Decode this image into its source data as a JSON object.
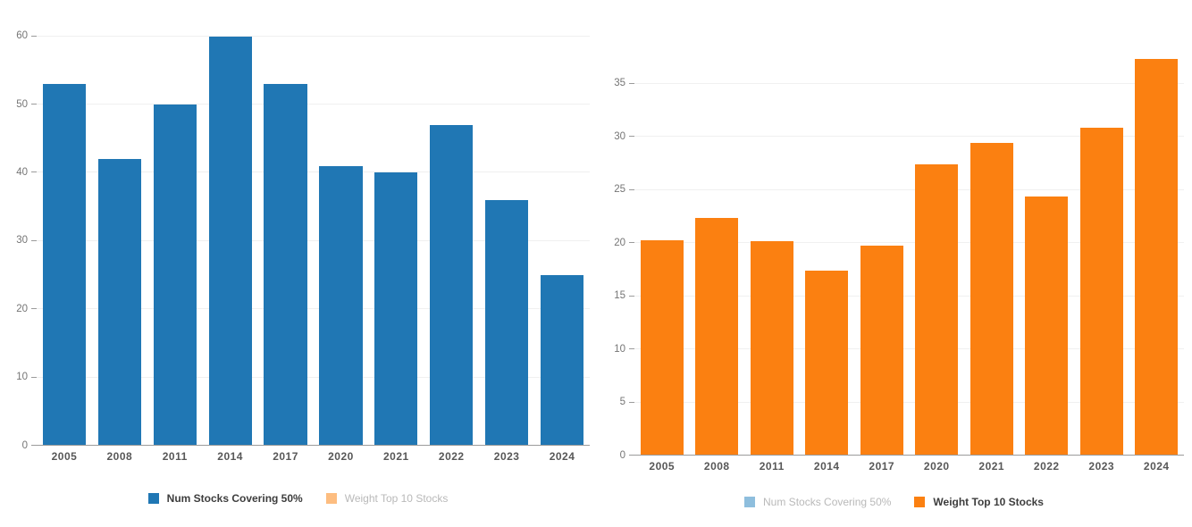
{
  "figure": {
    "background_color": "#ffffff",
    "gridline_color": "#f0f0f0",
    "axis_line_color": "#9b9b9b"
  },
  "chart_data": [
    {
      "id": "num_stocks_covering_50pct",
      "type": "bar",
      "title": "",
      "xlabel": "",
      "ylabel": "",
      "categories": [
        "2005",
        "2008",
        "2011",
        "2014",
        "2017",
        "2020",
        "2021",
        "2022",
        "2023",
        "2024"
      ],
      "values": [
        53,
        42,
        50,
        60,
        53,
        41,
        40,
        47,
        36,
        25
      ],
      "series_name": "Num Stocks Covering 50%",
      "bar_color": "#2077b4",
      "ylim": [
        0,
        61.4
      ],
      "yticks": [
        0,
        10,
        20,
        30,
        40,
        50,
        60
      ],
      "grid": true,
      "legend_position": "bottom-center",
      "legend": [
        {
          "label": "Num Stocks Covering 50%",
          "swatch_color": "#2077b4",
          "active": true
        },
        {
          "label": "Weight Top 10 Stocks",
          "swatch_color": "#fdbd80",
          "active": false
        }
      ]
    },
    {
      "id": "weight_top_10_stocks",
      "type": "bar",
      "title": "",
      "xlabel": "",
      "ylabel": "",
      "categories": [
        "2005",
        "2008",
        "2011",
        "2014",
        "2017",
        "2020",
        "2021",
        "2022",
        "2023",
        "2024"
      ],
      "values": [
        20.3,
        22.4,
        20.2,
        17.4,
        19.8,
        27.4,
        29.4,
        24.4,
        30.9,
        37.3
      ],
      "series_name": "Weight Top 10 Stocks",
      "bar_color": "#fb8011",
      "ylim": [
        0,
        37.5
      ],
      "yticks": [
        0,
        5,
        10,
        15,
        20,
        25,
        30,
        35
      ],
      "grid": true,
      "legend_position": "bottom-center",
      "legend": [
        {
          "label": "Num Stocks Covering 50%",
          "swatch_color": "#8ebedd",
          "active": false
        },
        {
          "label": "Weight Top 10 Stocks",
          "swatch_color": "#fb8011",
          "active": true
        }
      ]
    }
  ]
}
